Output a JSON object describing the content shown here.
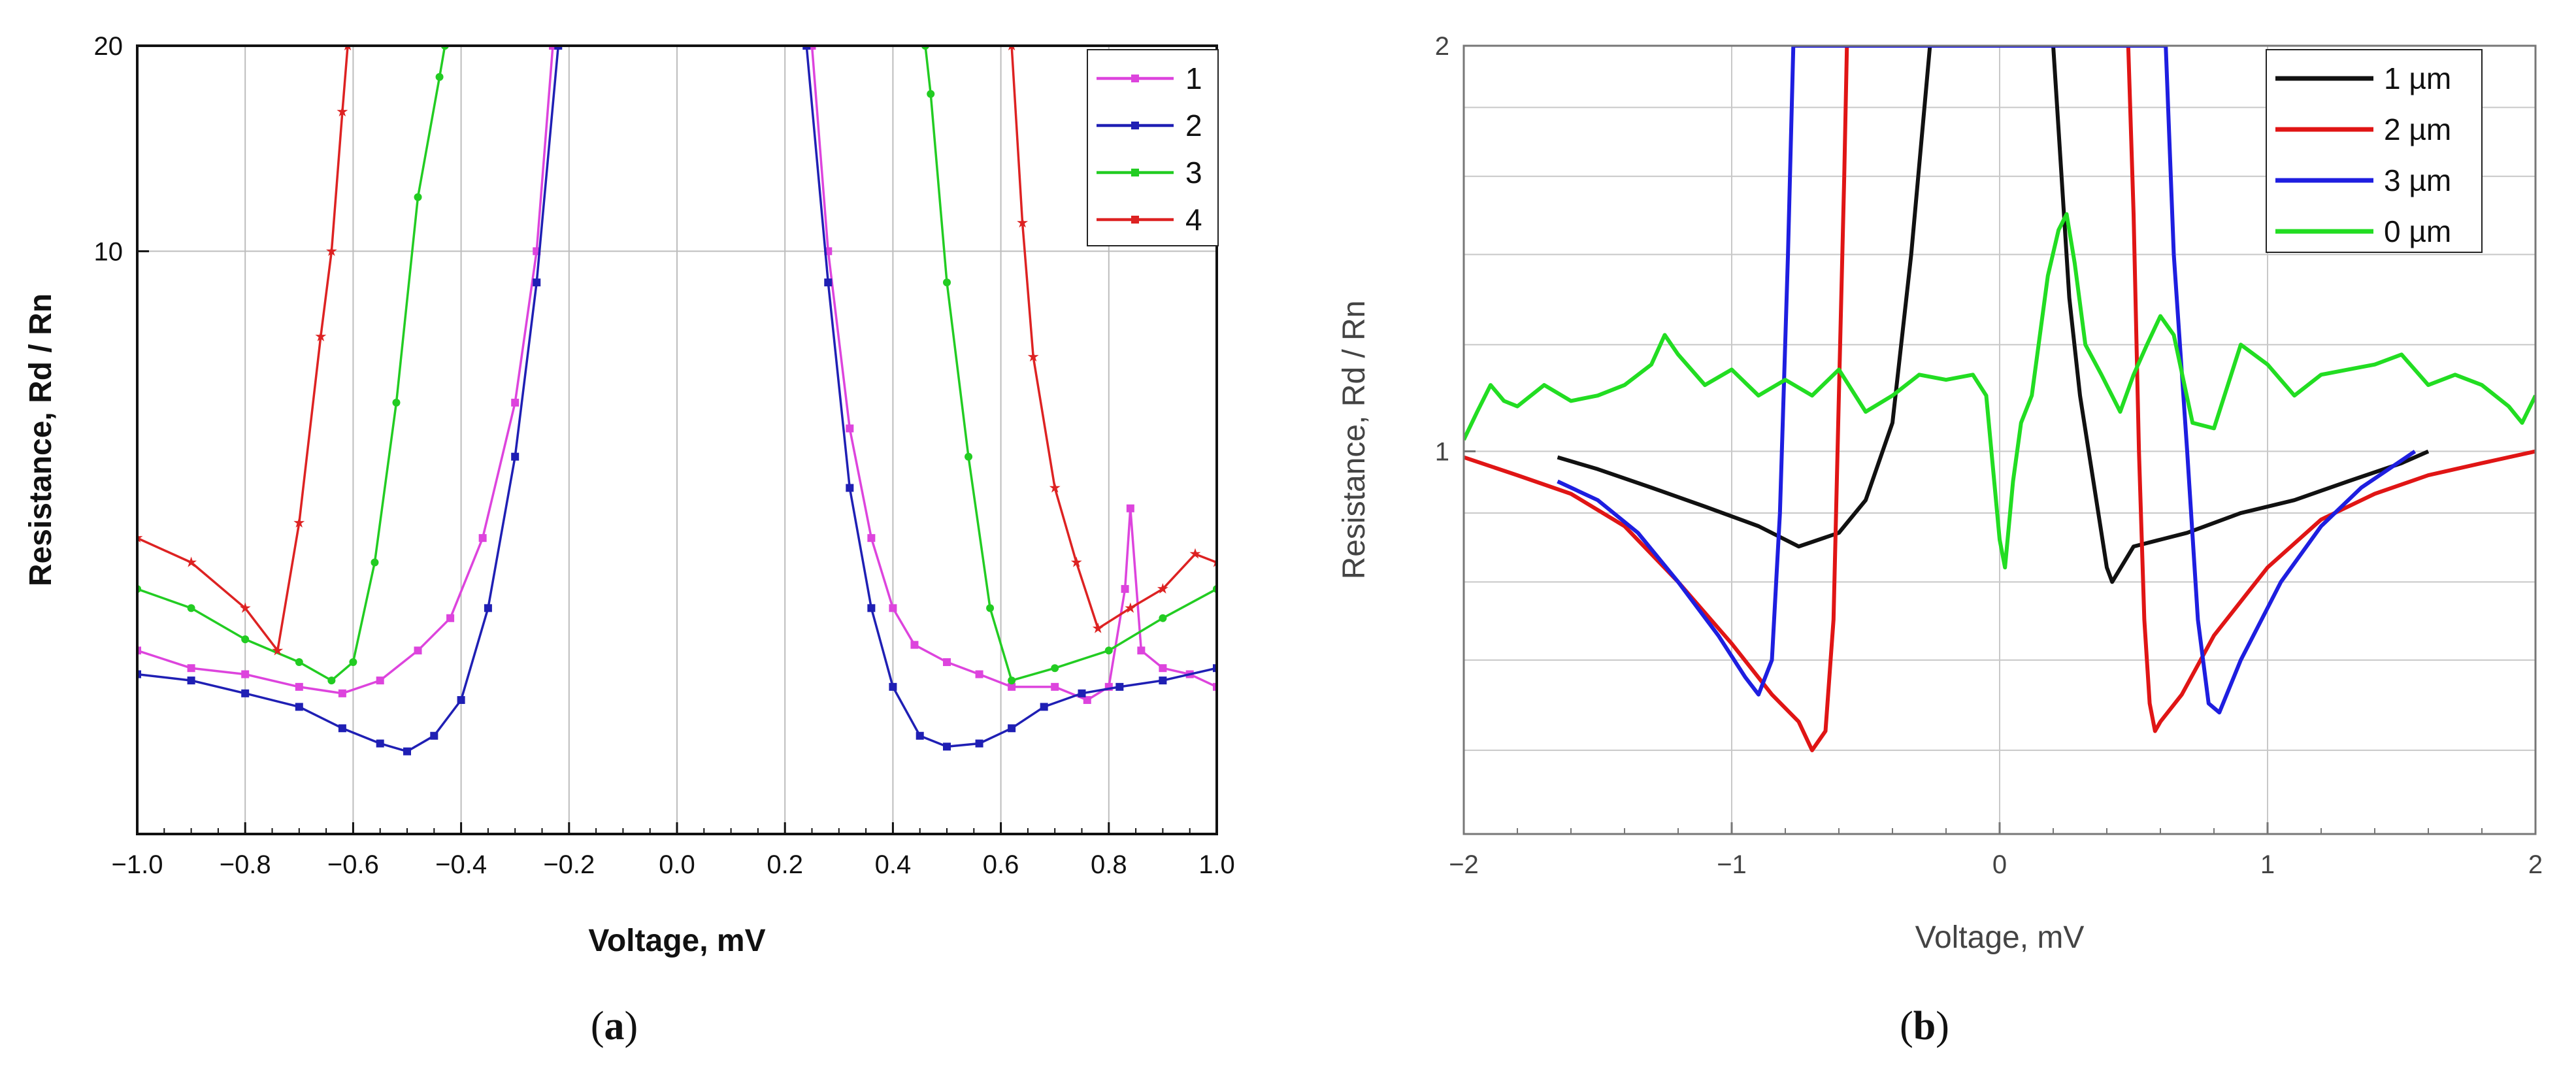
{
  "chart_data": [
    {
      "type": "line",
      "xlabel": "Voltage, mV",
      "ylabel": "Resistance,  Rd / Rn",
      "xlim": [
        -1.0,
        1.0
      ],
      "y_scale": "log",
      "ylim": [
        1.4,
        20
      ],
      "x_ticks": [
        "−1.0",
        "−0.8",
        "−0.6",
        "−0.4",
        "−0.2",
        "0.0",
        "0.2",
        "0.4",
        "0.6",
        "0.8",
        "1.0"
      ],
      "x_tick_values": [
        -1.0,
        -0.8,
        -0.6,
        -0.4,
        -0.2,
        0.0,
        0.2,
        0.4,
        0.6,
        0.8,
        1.0
      ],
      "y_ticks": [
        "10",
        "20"
      ],
      "y_tick_values": [
        10,
        20
      ],
      "caption": "(a)",
      "caption_letter": "a",
      "series": [
        {
          "name": "1",
          "color": "#dd44dd",
          "marker": "square",
          "x": [
            -1.0,
            -0.9,
            -0.8,
            -0.7,
            -0.62,
            -0.55,
            -0.48,
            -0.42,
            -0.36,
            -0.3,
            -0.26,
            -0.23,
            0.25,
            0.28,
            0.32,
            0.36,
            0.4,
            0.44,
            0.5,
            0.56,
            0.62,
            0.7,
            0.76,
            0.8,
            0.83,
            0.84,
            0.86,
            0.9,
            0.95,
            1.0
          ],
          "y": [
            2.6,
            2.45,
            2.4,
            2.3,
            2.25,
            2.35,
            2.6,
            2.9,
            3.8,
            6.0,
            10.0,
            20.0,
            20.0,
            10.0,
            5.5,
            3.8,
            3.0,
            2.65,
            2.5,
            2.4,
            2.3,
            2.3,
            2.2,
            2.3,
            3.2,
            4.2,
            2.6,
            2.45,
            2.4,
            2.3
          ]
        },
        {
          "name": "2",
          "color": "#1f1fb4",
          "marker": "square",
          "x": [
            -1.0,
            -0.9,
            -0.8,
            -0.7,
            -0.62,
            -0.55,
            -0.5,
            -0.45,
            -0.4,
            -0.35,
            -0.3,
            -0.26,
            -0.22,
            0.24,
            0.28,
            0.32,
            0.36,
            0.4,
            0.45,
            0.5,
            0.56,
            0.62,
            0.68,
            0.75,
            0.82,
            0.9,
            1.0
          ],
          "y": [
            2.4,
            2.35,
            2.25,
            2.15,
            2.0,
            1.9,
            1.85,
            1.95,
            2.2,
            3.0,
            5.0,
            9.0,
            20.0,
            20.0,
            9.0,
            4.5,
            3.0,
            2.3,
            1.95,
            1.88,
            1.9,
            2.0,
            2.15,
            2.25,
            2.3,
            2.35,
            2.45
          ]
        },
        {
          "name": "3",
          "color": "#22cc22",
          "marker": "circle",
          "x": [
            -1.0,
            -0.9,
            -0.8,
            -0.7,
            -0.64,
            -0.6,
            -0.56,
            -0.52,
            -0.48,
            -0.44,
            -0.43,
            0.46,
            0.47,
            0.5,
            0.54,
            0.58,
            0.62,
            0.7,
            0.8,
            0.9,
            1.0
          ],
          "y": [
            3.2,
            3.0,
            2.7,
            2.5,
            2.35,
            2.5,
            3.5,
            6.0,
            12.0,
            18.0,
            20.0,
            20.0,
            17.0,
            9.0,
            5.0,
            3.0,
            2.35,
            2.45,
            2.6,
            2.9,
            3.2
          ]
        },
        {
          "name": "4",
          "color": "#dd2222",
          "marker": "star",
          "x": [
            -1.0,
            -0.9,
            -0.8,
            -0.74,
            -0.7,
            -0.66,
            -0.64,
            -0.62,
            -0.61,
            0.62,
            0.64,
            0.66,
            0.7,
            0.74,
            0.78,
            0.84,
            0.9,
            0.96,
            1.0
          ],
          "y": [
            3.8,
            3.5,
            3.0,
            2.6,
            4.0,
            7.5,
            10.0,
            16.0,
            20.0,
            20.0,
            11.0,
            7.0,
            4.5,
            3.5,
            2.8,
            3.0,
            3.2,
            3.6,
            3.5
          ]
        }
      ]
    },
    {
      "type": "line",
      "xlabel": "Voltage, mV",
      "ylabel": "Resistance,  Rd / Rn",
      "xlim": [
        -2,
        2
      ],
      "y_scale": "log",
      "ylim": [
        0.52,
        2
      ],
      "x_ticks": [
        "−2",
        "−1",
        "0",
        "1",
        "2"
      ],
      "x_tick_values": [
        -2,
        -1,
        0,
        1,
        2
      ],
      "y_ticks": [
        "1",
        "2"
      ],
      "y_tick_values": [
        1,
        2
      ],
      "caption": "(b)",
      "caption_letter": "b",
      "series": [
        {
          "name": "1 µm",
          "color": "#111111",
          "x": [
            -1.65,
            -1.5,
            -1.3,
            -1.1,
            -0.9,
            -0.75,
            -0.6,
            -0.5,
            -0.4,
            -0.33,
            -0.26,
            0.2,
            0.26,
            0.3,
            0.35,
            0.4,
            0.42,
            0.5,
            0.6,
            0.7,
            0.9,
            1.1,
            1.3,
            1.5,
            1.6
          ],
          "y": [
            0.99,
            0.97,
            0.94,
            0.91,
            0.88,
            0.85,
            0.87,
            0.92,
            1.05,
            1.4,
            2.0,
            2.0,
            1.3,
            1.1,
            0.95,
            0.82,
            0.8,
            0.85,
            0.86,
            0.87,
            0.9,
            0.92,
            0.95,
            0.98,
            1.0
          ]
        },
        {
          "name": "2 µm",
          "color": "#e01515",
          "x": [
            -2.0,
            -1.8,
            -1.6,
            -1.4,
            -1.2,
            -1.0,
            -0.85,
            -0.75,
            -0.7,
            -0.65,
            -0.62,
            -0.6,
            -0.58,
            -0.57,
            -0.56,
            0.48,
            0.5,
            0.52,
            0.54,
            0.56,
            0.58,
            0.6,
            0.68,
            0.8,
            1.0,
            1.2,
            1.4,
            1.6,
            1.8,
            2.0
          ],
          "y": [
            0.99,
            0.96,
            0.93,
            0.88,
            0.8,
            0.72,
            0.66,
            0.63,
            0.6,
            0.62,
            0.75,
            1.1,
            1.6,
            2.0,
            2.0,
            2.0,
            1.5,
            1.0,
            0.75,
            0.65,
            0.62,
            0.63,
            0.66,
            0.73,
            0.82,
            0.89,
            0.93,
            0.96,
            0.98,
            1.0
          ]
        },
        {
          "name": "3 µm",
          "color": "#1e1ee0",
          "x": [
            -1.65,
            -1.5,
            -1.35,
            -1.2,
            -1.05,
            -0.95,
            -0.9,
            -0.85,
            -0.82,
            -0.79,
            -0.77,
            0.62,
            0.65,
            0.7,
            0.74,
            0.78,
            0.82,
            0.9,
            1.05,
            1.2,
            1.35,
            1.55
          ],
          "y": [
            0.95,
            0.92,
            0.87,
            0.8,
            0.73,
            0.68,
            0.66,
            0.7,
            0.9,
            1.4,
            2.0,
            2.0,
            1.4,
            1.0,
            0.75,
            0.65,
            0.64,
            0.7,
            0.8,
            0.88,
            0.94,
            1.0
          ]
        },
        {
          "name": "0 µm",
          "color": "#22dd22",
          "x": [
            -2.0,
            -1.95,
            -1.9,
            -1.85,
            -1.8,
            -1.7,
            -1.6,
            -1.5,
            -1.4,
            -1.3,
            -1.25,
            -1.2,
            -1.1,
            -1.0,
            -0.9,
            -0.8,
            -0.7,
            -0.6,
            -0.5,
            -0.4,
            -0.3,
            -0.2,
            -0.1,
            -0.05,
            0.0,
            0.02,
            0.05,
            0.08,
            0.12,
            0.18,
            0.22,
            0.25,
            0.28,
            0.32,
            0.38,
            0.45,
            0.5,
            0.55,
            0.6,
            0.65,
            0.72,
            0.8,
            0.9,
            1.0,
            1.1,
            1.2,
            1.3,
            1.4,
            1.5,
            1.6,
            1.7,
            1.8,
            1.9,
            1.95,
            2.0
          ],
          "y": [
            1.02,
            1.07,
            1.12,
            1.09,
            1.08,
            1.12,
            1.09,
            1.1,
            1.12,
            1.16,
            1.22,
            1.18,
            1.12,
            1.15,
            1.1,
            1.13,
            1.1,
            1.15,
            1.07,
            1.1,
            1.14,
            1.13,
            1.14,
            1.1,
            0.86,
            0.82,
            0.95,
            1.05,
            1.1,
            1.35,
            1.46,
            1.5,
            1.38,
            1.2,
            1.14,
            1.07,
            1.14,
            1.2,
            1.26,
            1.22,
            1.05,
            1.04,
            1.2,
            1.16,
            1.1,
            1.14,
            1.15,
            1.16,
            1.18,
            1.12,
            1.14,
            1.12,
            1.08,
            1.05,
            1.1
          ]
        }
      ]
    }
  ]
}
